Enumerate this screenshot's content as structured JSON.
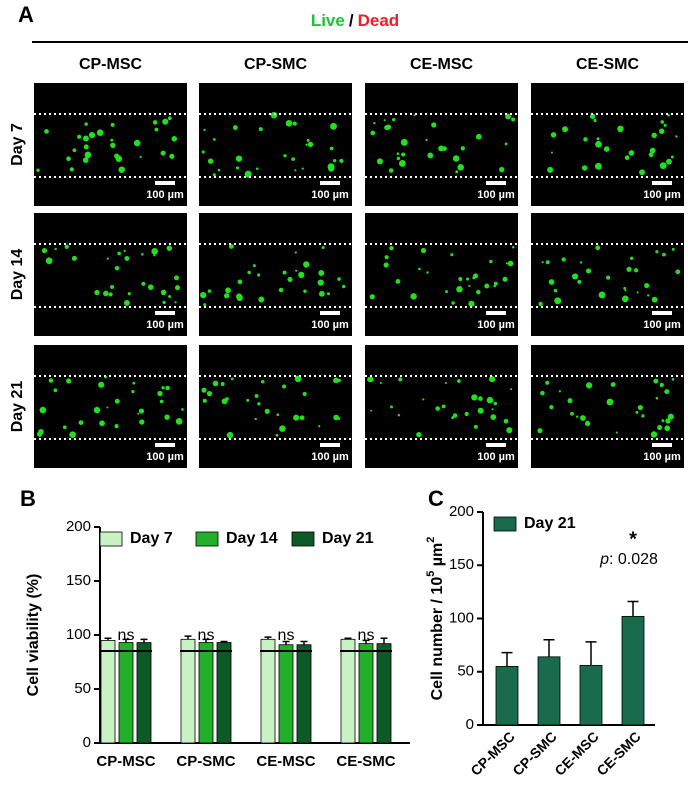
{
  "panel_a": {
    "label": "A",
    "legend": {
      "live": "Live",
      "separator": "/",
      "dead": "Dead"
    },
    "columns": [
      "CP-MSC",
      "CP-SMC",
      "CE-MSC",
      "CE-SMC"
    ],
    "rows": [
      "Day 7",
      "Day 14",
      "Day 21"
    ],
    "scale_bar": "100 µm"
  },
  "chart_data": [
    {
      "type": "grouped_bar",
      "panel_label": "B",
      "y_label": "Cell viability (%)",
      "categories": [
        "CP-MSC",
        "CP-SMC",
        "CE-MSC",
        "CE-SMC"
      ],
      "series": [
        {
          "name": "Day 7",
          "color": "#c9f2c4",
          "values": [
            95,
            96,
            96,
            96
          ],
          "errors": [
            2,
            3,
            2,
            1
          ]
        },
        {
          "name": "Day 14",
          "color": "#22b02a",
          "values": [
            93,
            93,
            91,
            92
          ],
          "errors": [
            3,
            3,
            3,
            3
          ]
        },
        {
          "name": "Day 21",
          "color": "#0e5a26",
          "values": [
            93,
            93,
            91,
            92
          ],
          "errors": [
            3,
            1,
            3,
            5
          ]
        }
      ],
      "annotations": [
        "ns",
        "ns",
        "ns",
        "ns"
      ],
      "ylim": [
        0,
        200
      ],
      "yticks": [
        0,
        50,
        100,
        150,
        200
      ]
    },
    {
      "type": "bar",
      "panel_label": "C",
      "y_label": [
        "Cell number / 10",
        "5",
        " µm",
        "2"
      ],
      "categories": [
        "CP-MSC",
        "CP-SMC",
        "CE-MSC",
        "CE-SMC"
      ],
      "series": [
        {
          "name": "Day 21",
          "color": "#1a6b4e",
          "values": [
            55,
            64,
            56,
            102
          ],
          "errors": [
            13,
            16,
            22,
            14
          ]
        }
      ],
      "annotation": {
        "star": "*",
        "p_label": "p",
        "p_value": ": 0.028"
      },
      "ylim": [
        0,
        200
      ],
      "yticks": [
        0,
        50,
        100,
        150,
        200
      ]
    }
  ]
}
